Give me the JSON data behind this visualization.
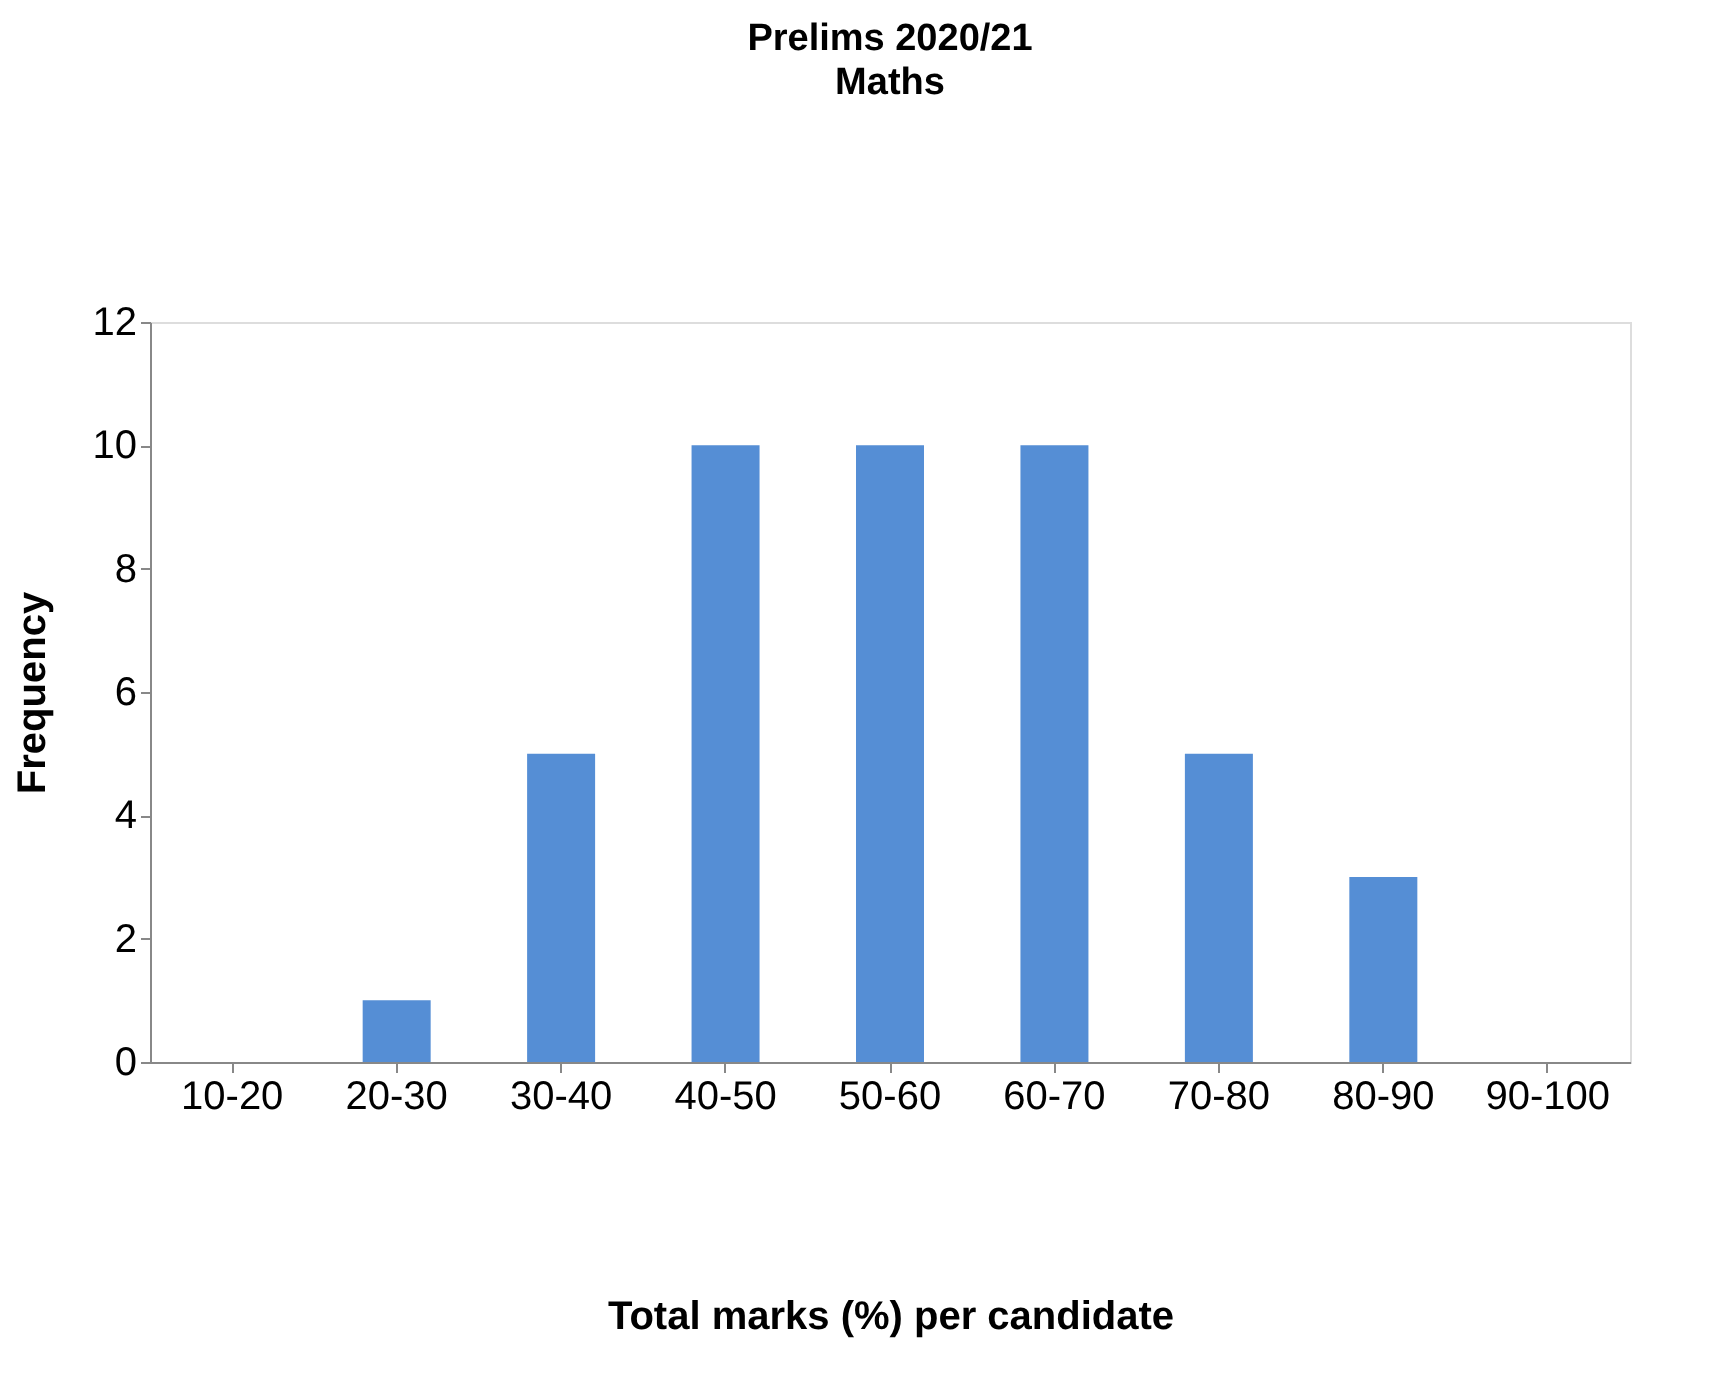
{
  "chart_data": {
    "type": "bar",
    "title": "Prelims  2020/21",
    "subtitle": "Maths",
    "xlabel": "Total marks (%) per candidate",
    "ylabel": "Frequency",
    "categories": [
      "10-20",
      "20-30",
      "30-40",
      "40-50",
      "50-60",
      "60-70",
      "70-80",
      "80-90",
      "90-100"
    ],
    "values": [
      0,
      1,
      5,
      10,
      10,
      10,
      5,
      3,
      0
    ],
    "color": "#558ed5",
    "ylim": [
      0,
      12
    ],
    "yticks": [
      0,
      2,
      4,
      6,
      8,
      10,
      12
    ],
    "grid": false
  }
}
